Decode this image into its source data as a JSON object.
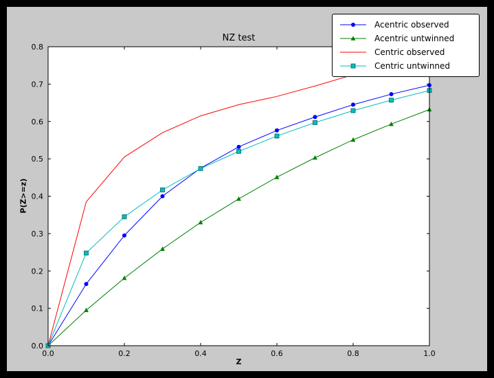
{
  "figure": {
    "background_color": "#c9c9c9",
    "plot_background": "#ffffff",
    "frame_color": "#000000"
  },
  "chart_data": {
    "type": "line",
    "title": "NZ test",
    "xlabel": "Z",
    "ylabel": "P(Z>=z)",
    "xlim": [
      0.0,
      1.0
    ],
    "ylim": [
      0.0,
      0.8
    ],
    "grid": false,
    "legend_position": "upper right",
    "x_ticks": [
      {
        "v": 0.0,
        "label": "0.0"
      },
      {
        "v": 0.2,
        "label": "0.2"
      },
      {
        "v": 0.4,
        "label": "0.4"
      },
      {
        "v": 0.6,
        "label": "0.6"
      },
      {
        "v": 0.8,
        "label": "0.8"
      },
      {
        "v": 1.0,
        "label": "1.0"
      }
    ],
    "y_ticks": [
      {
        "v": 0.0,
        "label": "0.0"
      },
      {
        "v": 0.1,
        "label": "0.1"
      },
      {
        "v": 0.2,
        "label": "0.2"
      },
      {
        "v": 0.3,
        "label": "0.3"
      },
      {
        "v": 0.4,
        "label": "0.4"
      },
      {
        "v": 0.5,
        "label": "0.5"
      },
      {
        "v": 0.6,
        "label": "0.6"
      },
      {
        "v": 0.7,
        "label": "0.7"
      },
      {
        "v": 0.8,
        "label": "0.8"
      }
    ],
    "x": [
      0.0,
      0.1,
      0.2,
      0.3,
      0.4,
      0.5,
      0.6,
      0.7,
      0.8,
      0.9,
      1.0
    ],
    "series": [
      {
        "name": "Acentric observed",
        "color": "#0000ff",
        "marker": "circle",
        "values": [
          0.0,
          0.165,
          0.295,
          0.4,
          0.475,
          0.532,
          0.576,
          0.612,
          0.645,
          0.673,
          0.697
        ]
      },
      {
        "name": "Acentric untwinned",
        "color": "#007f00",
        "marker": "triangle",
        "values": [
          0.0,
          0.095,
          0.181,
          0.259,
          0.33,
          0.393,
          0.451,
          0.503,
          0.551,
          0.593,
          0.632
        ]
      },
      {
        "name": "Centric observed",
        "color": "#ff0000",
        "marker": "none",
        "values": [
          0.0,
          0.385,
          0.505,
          0.57,
          0.615,
          0.645,
          0.667,
          0.695,
          0.725,
          0.748,
          0.768
        ]
      },
      {
        "name": "Centric untwinned",
        "color": "#00bfbf",
        "marker": "square",
        "values": [
          0.0,
          0.248,
          0.345,
          0.417,
          0.474,
          0.52,
          0.561,
          0.597,
          0.629,
          0.657,
          0.683
        ]
      }
    ]
  }
}
